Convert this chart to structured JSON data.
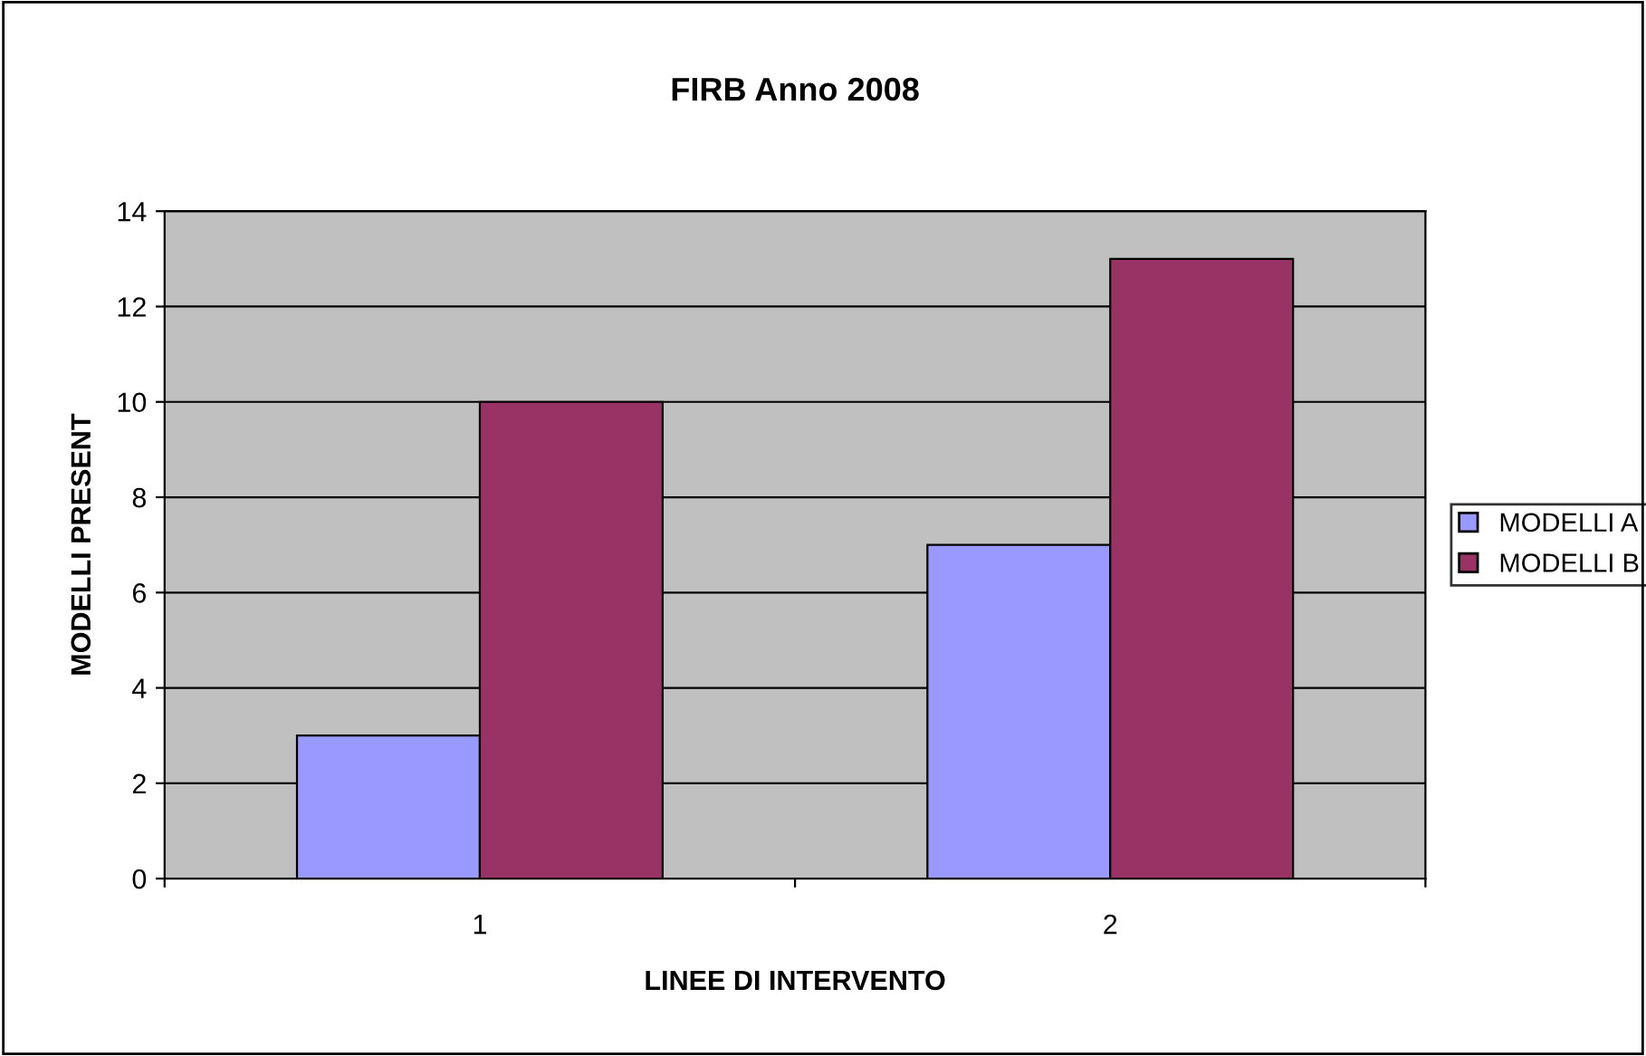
{
  "chart_data": {
    "type": "bar",
    "title": "FIRB Anno 2008",
    "xlabel": "LINEE DI INTERVENTO",
    "ylabel": "MODELLI PRESENT",
    "categories": [
      "1",
      "2"
    ],
    "series": [
      {
        "name": "MODELLI A",
        "color": "#9999ff",
        "values": [
          3,
          7
        ]
      },
      {
        "name": "MODELLI B",
        "color": "#993366",
        "values": [
          10,
          13
        ]
      }
    ],
    "ylim": [
      0,
      14
    ],
    "yticks": [
      0,
      2,
      4,
      6,
      8,
      10,
      12,
      14
    ],
    "grid": "y",
    "legend": "right"
  }
}
